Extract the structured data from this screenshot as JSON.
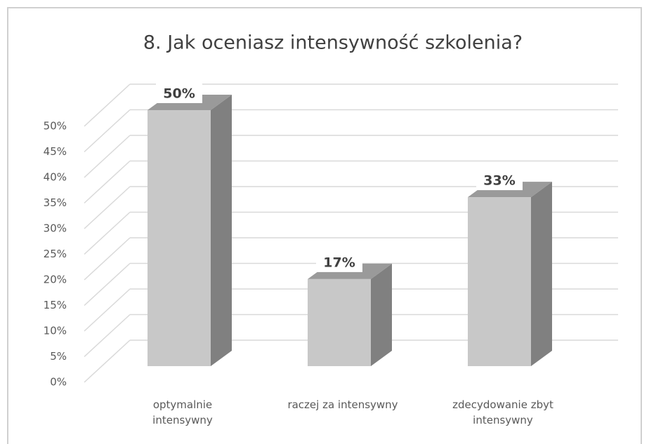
{
  "chart_data": {
    "type": "bar3d",
    "title": "8. Jak oceniasz intensywność szkolenia?",
    "categories": [
      "optymalnie intensywny",
      "raczej za intensywny",
      "zdecydowanie zbyt intensywny"
    ],
    "values": [
      50,
      17,
      33
    ],
    "value_labels": [
      "50%",
      "17%",
      "33%"
    ],
    "color": "#c8c8c8",
    "ylim": [
      0,
      50
    ],
    "yticks": [
      {
        "value": 0,
        "label": "0%"
      },
      {
        "value": 5,
        "label": "5%"
      },
      {
        "value": 10,
        "label": "10%"
      },
      {
        "value": 15,
        "label": "15%"
      },
      {
        "value": 20,
        "label": "20%"
      },
      {
        "value": 25,
        "label": "25%"
      },
      {
        "value": 30,
        "label": "30%"
      },
      {
        "value": 35,
        "label": "35%"
      },
      {
        "value": 40,
        "label": "40%"
      },
      {
        "value": 45,
        "label": "45%"
      },
      {
        "value": 50,
        "label": "50%"
      }
    ],
    "grid": true
  }
}
